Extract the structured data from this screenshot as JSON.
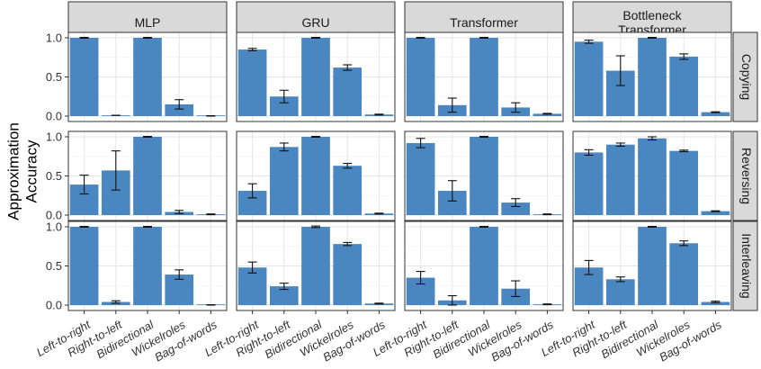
{
  "chart_data": {
    "type": "bar",
    "ylabel": "Approximation Accuracy",
    "xlabel": "",
    "ylim": [
      0,
      1.05
    ],
    "yticks": [
      "0.0",
      "0.5",
      "1.0"
    ],
    "grid": true,
    "colors": {
      "bar": "#4a86bf",
      "strip": "#d9d9d9"
    },
    "categories": [
      "Left-to-right",
      "Right-to-left",
      "Bidirectional",
      "Wickelroles",
      "Bag-of-words"
    ],
    "columns": [
      {
        "label": "MLP"
      },
      {
        "label": "GRU"
      },
      {
        "label": "Transformer"
      },
      {
        "label": "Bottleneck\nTransformer"
      }
    ],
    "rows": [
      {
        "label": "Copying"
      },
      {
        "label": "Reversing"
      },
      {
        "label": "Interleaving"
      }
    ],
    "panels": [
      [
        {
          "values": [
            1.0,
            0.01,
            1.0,
            0.15,
            0.0
          ],
          "err": [
            0.005,
            0.0,
            0.005,
            0.06,
            0.005
          ]
        },
        {
          "values": [
            0.85,
            0.25,
            1.0,
            0.62,
            0.02
          ],
          "err": [
            0.015,
            0.08,
            0.005,
            0.035,
            0.005
          ]
        },
        {
          "values": [
            1.0,
            0.14,
            1.0,
            0.11,
            0.03
          ],
          "err": [
            0.005,
            0.09,
            0.005,
            0.06,
            0.005
          ]
        },
        {
          "values": [
            0.95,
            0.58,
            1.0,
            0.76,
            0.05
          ],
          "err": [
            0.02,
            0.19,
            0.005,
            0.035,
            0.005
          ]
        }
      ],
      [
        {
          "values": [
            0.39,
            0.57,
            1.0,
            0.04,
            0.01
          ],
          "err": [
            0.12,
            0.25,
            0.005,
            0.02,
            0.005
          ]
        },
        {
          "values": [
            0.31,
            0.87,
            1.0,
            0.63,
            0.02
          ],
          "err": [
            0.09,
            0.05,
            0.005,
            0.03,
            0.005
          ]
        },
        {
          "values": [
            0.92,
            0.31,
            1.0,
            0.16,
            0.01
          ],
          "err": [
            0.06,
            0.13,
            0.005,
            0.05,
            0.005
          ]
        },
        {
          "values": [
            0.8,
            0.9,
            0.98,
            0.82,
            0.05
          ],
          "err": [
            0.035,
            0.02,
            0.02,
            0.01,
            0.005
          ]
        }
      ],
      [
        {
          "values": [
            1.0,
            0.04,
            1.0,
            0.39,
            0.0
          ],
          "err": [
            0.005,
            0.015,
            0.005,
            0.06,
            0.005
          ]
        },
        {
          "values": [
            0.48,
            0.24,
            1.0,
            0.78,
            0.02
          ],
          "err": [
            0.07,
            0.04,
            0.01,
            0.02,
            0.005
          ]
        },
        {
          "values": [
            0.35,
            0.06,
            1.0,
            0.21,
            0.01
          ],
          "err": [
            0.08,
            0.06,
            0.005,
            0.1,
            0.005
          ]
        },
        {
          "values": [
            0.48,
            0.33,
            1.0,
            0.79,
            0.04
          ],
          "err": [
            0.09,
            0.03,
            0.005,
            0.03,
            0.01
          ]
        }
      ]
    ]
  }
}
